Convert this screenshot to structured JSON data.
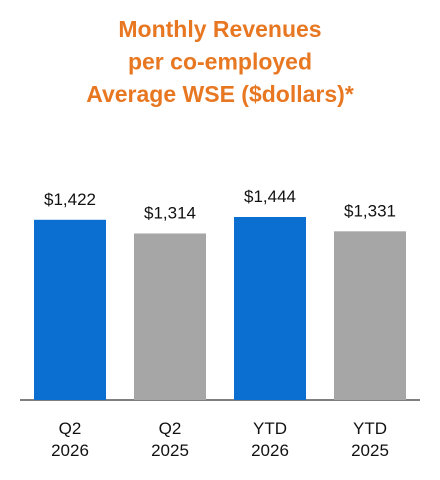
{
  "chart_data": {
    "type": "bar",
    "title": "Monthly Revenues\nper co-employed\nAverage WSE ($dollars)*",
    "title_color": "#e87722",
    "categories": [
      "Q2\n2026",
      "Q2\n2025",
      "YTD\n2026",
      "YTD\n2025"
    ],
    "values": [
      1422,
      1314,
      1444,
      1331
    ],
    "value_labels": [
      "$1,422",
      "$1,314",
      "$1,444",
      "$1,331"
    ],
    "colors": [
      "#0a6fd1",
      "#a6a6a6",
      "#0a6fd1",
      "#a6a6a6"
    ]
  }
}
